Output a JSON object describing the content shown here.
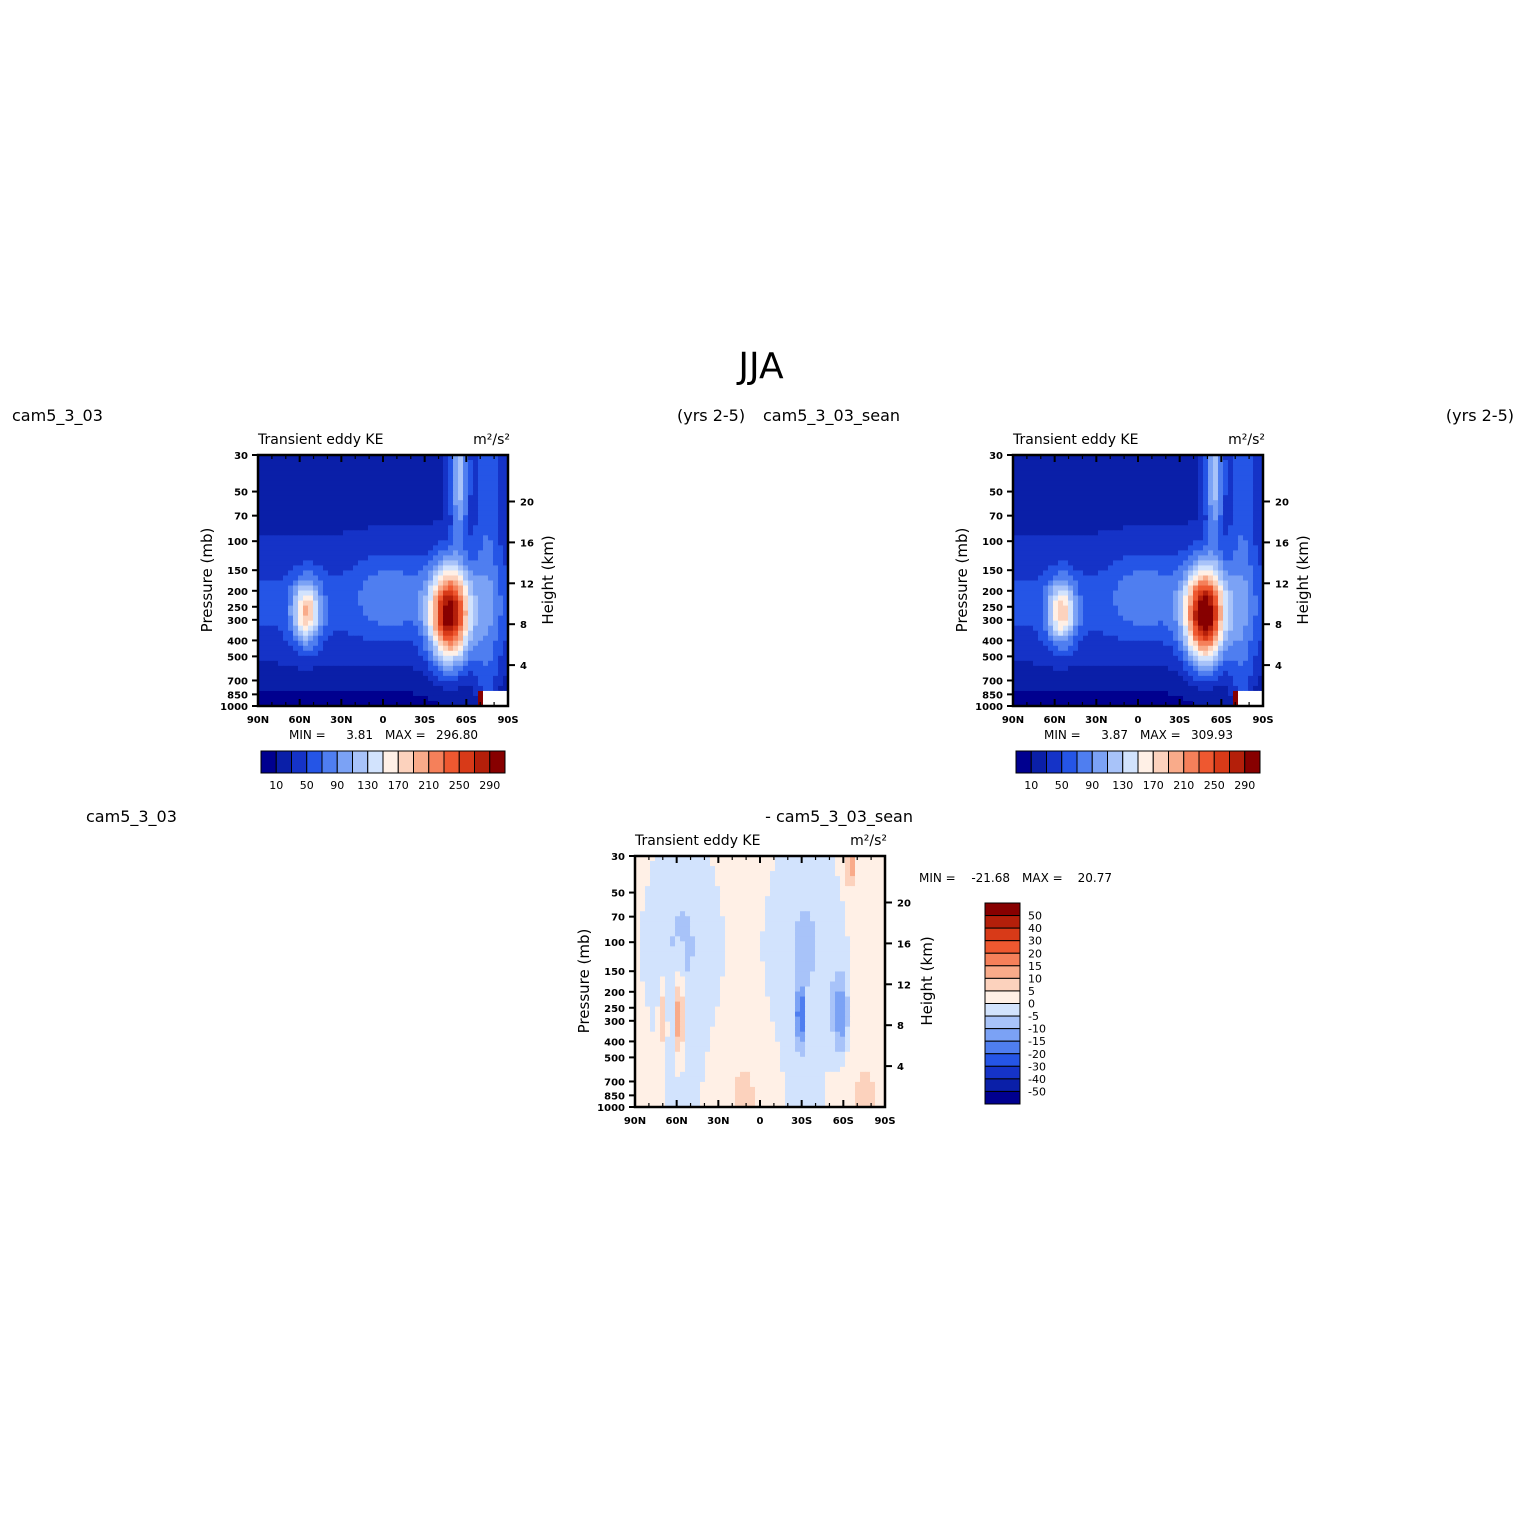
{
  "figure": {
    "title": "JJA",
    "panel_left_case": "cam5_3_03",
    "panel_left_years": "(yrs 2-5)",
    "panel_right_case": "cam5_3_03_sean",
    "panel_right_years": "(yrs 2-5)",
    "diff_left_case": "cam5_3_03",
    "diff_right_case": "- cam5_3_03_sean"
  },
  "colors": {
    "abs_scale": [
      "#00008f",
      "#0a1fa8",
      "#1533c7",
      "#2555e6",
      "#4f7ef0",
      "#7ba2f5",
      "#a8c3f9",
      "#d2e3fd",
      "#fff0e6",
      "#fcd2bd",
      "#f9ab8a",
      "#f5805a",
      "#ee5830",
      "#d83a18",
      "#b41f0a",
      "#870000"
    ],
    "diff_scale": [
      "#00008f",
      "#0a1fa8",
      "#1533c7",
      "#2555e6",
      "#4f7ef0",
      "#7ba2f5",
      "#a8c3f9",
      "#d2e3fd",
      "#fff0e6",
      "#fcd2bd",
      "#f9ab8a",
      "#f5805a",
      "#ee5830",
      "#d83a18",
      "#b41f0a",
      "#870000"
    ]
  },
  "chart_data": [
    {
      "type": "heatmap",
      "id": "p1",
      "title": "Transient eddy KE",
      "units": "m²/s²",
      "ylabel": "Pressure (mb)",
      "y2label": "Height (km)",
      "x_ticks": [
        "90N",
        "60N",
        "30N",
        "0",
        "30S",
        "60S",
        "90S"
      ],
      "y_ticks": [
        "30",
        "50",
        "70",
        "100",
        "150",
        "200",
        "250",
        "300",
        "400",
        "500",
        "700",
        "850",
        "1000"
      ],
      "y2_ticks": [
        "20",
        "16",
        "12",
        "8",
        "4"
      ],
      "min_label": "MIN =",
      "min_value": "3.81",
      "max_label": "MAX =",
      "max_value": "296.80",
      "colorbar_labels": [
        "10",
        "50",
        "90",
        "130",
        "170",
        "210",
        "250",
        "290"
      ],
      "features": [
        {
          "lat": 55,
          "p": 270,
          "value": 180,
          "width_deg": 10,
          "height_km": 3
        },
        {
          "lat": -48,
          "p": 280,
          "value": 296.8,
          "width_deg": 14,
          "height_km": 4.5
        },
        {
          "lat": -55,
          "p": 40,
          "value": 140,
          "width_deg": 6,
          "height_km": 6
        }
      ]
    },
    {
      "type": "heatmap",
      "id": "p2",
      "title": "Transient eddy KE",
      "units": "m²/s²",
      "ylabel": "Pressure (mb)",
      "y2label": "Height (km)",
      "x_ticks": [
        "90N",
        "60N",
        "30N",
        "0",
        "30S",
        "60S",
        "90S"
      ],
      "y_ticks": [
        "30",
        "50",
        "70",
        "100",
        "150",
        "200",
        "250",
        "300",
        "400",
        "500",
        "700",
        "850",
        "1000"
      ],
      "y2_ticks": [
        "20",
        "16",
        "12",
        "8",
        "4"
      ],
      "min_label": "MIN =",
      "min_value": "3.87",
      "max_label": "MAX =",
      "max_value": "309.93",
      "colorbar_labels": [
        "10",
        "50",
        "90",
        "130",
        "170",
        "210",
        "250",
        "290"
      ],
      "features": [
        {
          "lat": 55,
          "p": 270,
          "value": 175,
          "width_deg": 10,
          "height_km": 3
        },
        {
          "lat": -48,
          "p": 280,
          "value": 309.93,
          "width_deg": 14,
          "height_km": 4.5
        },
        {
          "lat": -55,
          "p": 40,
          "value": 140,
          "width_deg": 6,
          "height_km": 6
        }
      ]
    },
    {
      "type": "heatmap",
      "id": "p3",
      "title": "Transient eddy KE",
      "units": "m²/s²",
      "ylabel": "Pressure (mb)",
      "y2label": "Height (km)",
      "x_ticks": [
        "90N",
        "60N",
        "30N",
        "0",
        "30S",
        "60S",
        "90S"
      ],
      "y_ticks": [
        "30",
        "50",
        "70",
        "100",
        "150",
        "200",
        "250",
        "300",
        "400",
        "500",
        "700",
        "850",
        "1000"
      ],
      "y2_ticks": [
        "20",
        "16",
        "12",
        "8",
        "4"
      ],
      "min_label": "MIN =",
      "min_value": "-21.68",
      "max_label": "MAX =",
      "max_value": "20.77",
      "colorbar_labels": [
        "50",
        "40",
        "30",
        "20",
        "15",
        "10",
        "5",
        "0",
        "-5",
        "-10",
        "-15",
        "-20",
        "-30",
        "-40",
        "-50"
      ],
      "features": [
        {
          "lat": 58,
          "p": 280,
          "value": 20.77,
          "width_deg": 3,
          "height_km": 4
        },
        {
          "lat": 70,
          "p": 280,
          "value": 10,
          "width_deg": 3,
          "height_km": 4
        },
        {
          "lat": -29,
          "p": 280,
          "value": -21.68,
          "width_deg": 2.5,
          "height_km": 3
        },
        {
          "lat": -58,
          "p": 280,
          "value": -15,
          "width_deg": 6,
          "height_km": 4
        },
        {
          "lat": -65,
          "p": 35,
          "value": 12,
          "width_deg": 3,
          "height_km": 2
        }
      ]
    }
  ]
}
